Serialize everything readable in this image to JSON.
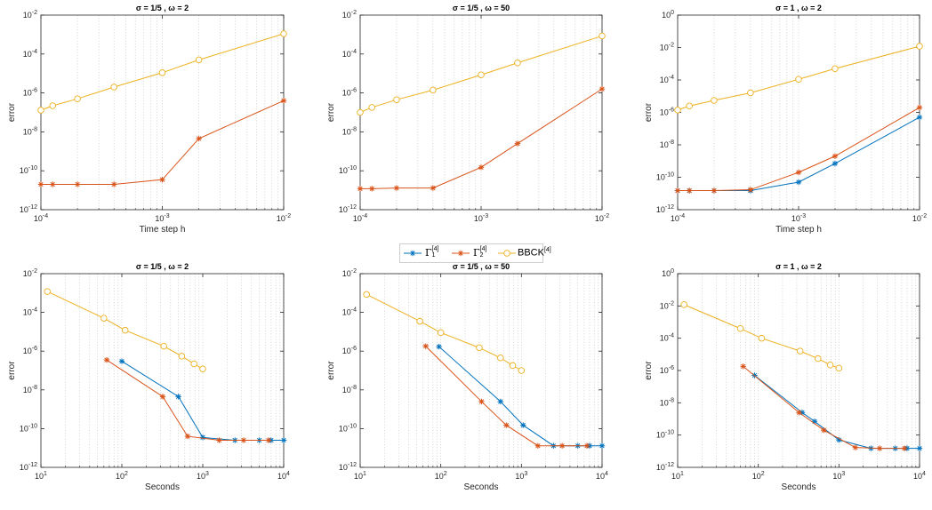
{
  "colors": {
    "gamma1": "#0072BD",
    "gamma2": "#D95319",
    "bbck": "#EDB120",
    "axis": "#262626",
    "grid": "#b8b8b8"
  },
  "legend": {
    "entries": [
      {
        "base": "Γ",
        "sup": "[4]",
        "sub": "1",
        "series": "gamma1"
      },
      {
        "base": "Γ",
        "sup": "[4]",
        "sub": "2",
        "series": "gamma2"
      },
      {
        "base": "BBCK",
        "sup": "[4]",
        "sub": "",
        "series": "bbck"
      }
    ]
  },
  "chart_data": [
    {
      "type": "line",
      "title": "σ = 1/5 , ω  = 2",
      "xlabel": "Time step h",
      "ylabel": "error",
      "xscale": "log",
      "yscale": "log",
      "xlim": [
        0.0001,
        0.01
      ],
      "ylim": [
        1e-12,
        0.01
      ],
      "xticks": [
        "10-4",
        "10-3",
        "10-2"
      ],
      "yticks": [
        "10-12",
        "10-10",
        "10-8",
        "10-6",
        "10-4",
        "10-2"
      ],
      "grid": "x-minor-dotted",
      "series": [
        {
          "name": "gamma2",
          "marker": "asterisk",
          "x": [
            0.0001,
            0.000125,
            0.0002,
            0.0004,
            0.001,
            0.002,
            0.01
          ],
          "y": [
            2e-11,
            2e-11,
            2e-11,
            2e-11,
            3.5e-11,
            4.5e-09,
            4e-07
          ]
        },
        {
          "name": "bbck",
          "marker": "circle",
          "x": [
            0.0001,
            0.000125,
            0.0002,
            0.0004,
            0.001,
            0.002,
            0.01
          ],
          "y": [
            1.3e-07,
            2.2e-07,
            5e-07,
            2e-06,
            1.1e-05,
            5e-05,
            0.0011
          ]
        }
      ]
    },
    {
      "type": "line",
      "title": "σ = 1/5 , ω  = 50",
      "xlabel": "",
      "ylabel": "error",
      "xscale": "log",
      "yscale": "log",
      "xlim": [
        0.0001,
        0.01
      ],
      "ylim": [
        1e-12,
        0.01
      ],
      "xticks": [
        "10-4",
        "10-3",
        "10-2"
      ],
      "yticks": [
        "10-12",
        "10-10",
        "10-8",
        "10-6",
        "10-4",
        "10-2"
      ],
      "grid": "x-minor-dotted",
      "series": [
        {
          "name": "gamma2",
          "marker": "asterisk",
          "x": [
            0.0001,
            0.000125,
            0.0002,
            0.0004,
            0.001,
            0.002,
            0.01
          ],
          "y": [
            1.2e-11,
            1.2e-11,
            1.3e-11,
            1.3e-11,
            1.5e-10,
            2.5e-09,
            1.6e-06
          ]
        },
        {
          "name": "bbck",
          "marker": "circle",
          "x": [
            0.0001,
            0.000125,
            0.0002,
            0.0004,
            0.001,
            0.002,
            0.01
          ],
          "y": [
            1e-07,
            1.8e-07,
            4.5e-07,
            1.4e-06,
            8.5e-06,
            3.5e-05,
            0.00085
          ]
        }
      ]
    },
    {
      "type": "line",
      "title": "σ = 1 , ω  = 2",
      "xlabel": "Time step h",
      "ylabel": "error",
      "xscale": "log",
      "yscale": "log",
      "xlim": [
        0.0001,
        0.01
      ],
      "ylim": [
        1e-12,
        1
      ],
      "xticks": [
        "10-4",
        "10-3",
        "10-2"
      ],
      "yticks": [
        "10-12",
        "10-10",
        "10-8",
        "10-6",
        "10-4",
        "10-2",
        "100"
      ],
      "grid": "x-minor-dotted",
      "series": [
        {
          "name": "gamma1",
          "marker": "asterisk",
          "x": [
            0.0001,
            0.000125,
            0.0002,
            0.0004,
            0.001,
            0.002,
            0.01
          ],
          "y": [
            1.5e-11,
            1.5e-11,
            1.5e-11,
            1.5e-11,
            5e-11,
            7e-10,
            5e-07
          ]
        },
        {
          "name": "gamma2",
          "marker": "asterisk",
          "x": [
            0.0001,
            0.000125,
            0.0002,
            0.0004,
            0.001,
            0.002,
            0.01
          ],
          "y": [
            1.5e-11,
            1.5e-11,
            1.5e-11,
            1.7e-11,
            2e-10,
            2e-09,
            2e-06
          ]
        },
        {
          "name": "bbck",
          "marker": "circle",
          "x": [
            0.0001,
            0.000125,
            0.0002,
            0.0004,
            0.001,
            0.002,
            0.01
          ],
          "y": [
            1.4e-06,
            2.5e-06,
            5.5e-06,
            1.6e-05,
            0.00011,
            0.0005,
            0.012
          ]
        }
      ]
    },
    {
      "type": "line",
      "title": "σ = 1/5 , ω  = 2",
      "xlabel": "Seconds",
      "ylabel": "error",
      "xscale": "log",
      "yscale": "log",
      "xlim": [
        10,
        10000
      ],
      "ylim": [
        1e-12,
        0.01
      ],
      "xticks": [
        "101",
        "102",
        "103",
        "104"
      ],
      "yticks": [
        "10-12",
        "10-10",
        "10-8",
        "10-6",
        "10-4",
        "10-2"
      ],
      "grid": "x-minor-dotted",
      "series": [
        {
          "name": "gamma1",
          "marker": "asterisk",
          "x": [
            100,
            500,
            1000,
            2500,
            5000,
            7000,
            10000
          ],
          "y": [
            3e-07,
            4.5e-09,
            3.5e-11,
            2.5e-11,
            2.5e-11,
            2.5e-11,
            2.5e-11
          ]
        },
        {
          "name": "gamma2",
          "marker": "asterisk",
          "x": [
            65,
            320,
            650,
            1600,
            3200,
            6500
          ],
          "y": [
            3.5e-07,
            4.5e-09,
            4e-11,
            2.5e-11,
            2.5e-11,
            2.5e-11
          ]
        },
        {
          "name": "bbck",
          "marker": "circle",
          "x": [
            12,
            60,
            110,
            330,
            550,
            780,
            1000
          ],
          "y": [
            0.0012,
            5e-05,
            1.2e-05,
            1.8e-06,
            5.5e-07,
            2.2e-07,
            1.2e-07
          ]
        }
      ]
    },
    {
      "type": "line",
      "title": "σ = 1/5 , ω  = 50",
      "xlabel": "Seconds",
      "ylabel": "error",
      "xscale": "log",
      "yscale": "log",
      "xlim": [
        10,
        10000
      ],
      "ylim": [
        1e-12,
        0.01
      ],
      "xticks": [
        "101",
        "102",
        "103",
        "104"
      ],
      "yticks": [
        "10-12",
        "10-10",
        "10-8",
        "10-6",
        "10-4",
        "10-2"
      ],
      "grid": "x-minor-dotted",
      "series": [
        {
          "name": "gamma1",
          "marker": "asterisk",
          "x": [
            95,
            550,
            1050,
            2500,
            5000,
            7000,
            10000
          ],
          "y": [
            1.7e-06,
            2.5e-09,
            1.5e-10,
            1.3e-11,
            1.3e-11,
            1.3e-11,
            1.3e-11
          ]
        },
        {
          "name": "gamma2",
          "marker": "asterisk",
          "x": [
            65,
            320,
            650,
            1600,
            3200,
            6500
          ],
          "y": [
            1.8e-06,
            2.5e-09,
            1.5e-10,
            1.3e-11,
            1.3e-11,
            1.3e-11
          ]
        },
        {
          "name": "bbck",
          "marker": "circle",
          "x": [
            12,
            55,
            100,
            300,
            550,
            780,
            1000
          ],
          "y": [
            0.00085,
            3.5e-05,
            9e-06,
            1.5e-06,
            4.5e-07,
            1.8e-07,
            1e-07
          ]
        }
      ]
    },
    {
      "type": "line",
      "title": "σ = 1 , ω  = 2",
      "xlabel": "Seconds",
      "ylabel": "error",
      "xscale": "log",
      "yscale": "log",
      "xlim": [
        10,
        10000
      ],
      "ylim": [
        1e-12,
        1
      ],
      "xticks": [
        "101",
        "102",
        "103",
        "104"
      ],
      "yticks": [
        "10-12",
        "10-10",
        "10-8",
        "10-6",
        "10-4",
        "10-2",
        "100"
      ],
      "grid": "x-minor-dotted",
      "series": [
        {
          "name": "gamma1",
          "marker": "asterisk",
          "x": [
            90,
            350,
            500,
            1000,
            2500,
            5000,
            7000,
            10000
          ],
          "y": [
            5e-07,
            2.5e-09,
            7e-10,
            5e-11,
            1.5e-11,
            1.5e-11,
            1.5e-11,
            1.5e-11
          ]
        },
        {
          "name": "gamma2",
          "marker": "asterisk",
          "x": [
            65,
            320,
            650,
            1600,
            3200,
            6500
          ],
          "y": [
            1.8e-06,
            2.5e-09,
            2e-10,
            1.7e-11,
            1.5e-11,
            1.5e-11
          ]
        },
        {
          "name": "bbck",
          "marker": "circle",
          "x": [
            12,
            60,
            110,
            330,
            550,
            780,
            1000
          ],
          "y": [
            0.012,
            0.0004,
            0.0001,
            1.6e-05,
            5.5e-06,
            2.2e-06,
            1.4e-06
          ]
        }
      ]
    }
  ]
}
